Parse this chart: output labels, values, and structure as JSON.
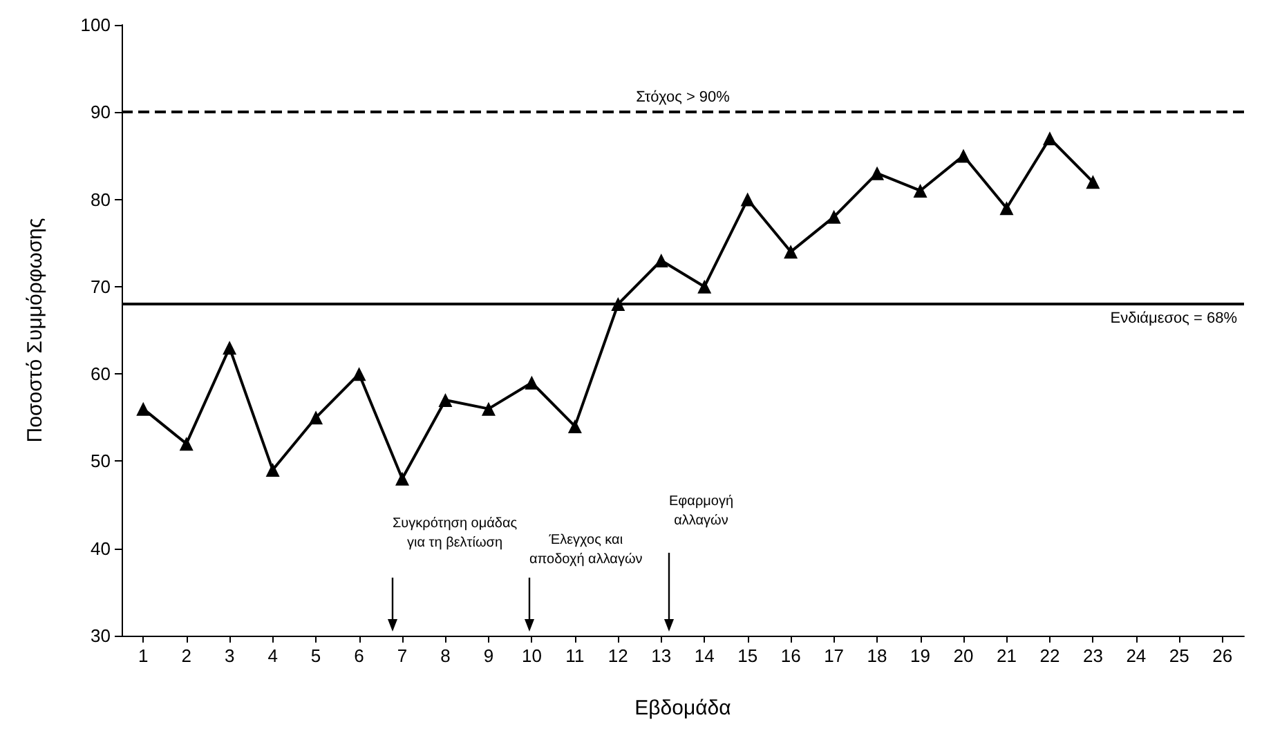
{
  "chart_data": {
    "type": "line",
    "xlabel": "Εβδομάδα",
    "ylabel": "Ποσοστό Συμμόρφωσης",
    "x": [
      1,
      2,
      3,
      4,
      5,
      6,
      7,
      8,
      9,
      10,
      11,
      12,
      13,
      14,
      15,
      16,
      17,
      18,
      19,
      20,
      21,
      22,
      23
    ],
    "series": [
      {
        "color": "#000000",
        "values": [
          56,
          52,
          63,
          49,
          55,
          60,
          48,
          57,
          56,
          59,
          54,
          68,
          73,
          70,
          80,
          74,
          78,
          83,
          81,
          85,
          79,
          87,
          82
        ]
      }
    ],
    "xlim": [
      0.5,
      26.5
    ],
    "xticks": [
      1,
      2,
      3,
      4,
      5,
      6,
      7,
      8,
      9,
      10,
      11,
      12,
      13,
      14,
      15,
      16,
      17,
      18,
      19,
      20,
      21,
      22,
      23,
      24,
      25,
      26
    ],
    "ylim": [
      30,
      100
    ],
    "yticks": [
      30,
      40,
      50,
      60,
      70,
      80,
      90,
      100
    ],
    "marker": "triangle",
    "line_style": "solid",
    "grid": false,
    "ref_lines": [
      {
        "axis": "y",
        "value": 90,
        "label": "Στόχος > 90%",
        "line_style": "dashed",
        "color": "#000000"
      },
      {
        "axis": "y",
        "value": 68,
        "label": "Ενδιάμεσος = 68%",
        "line_style": "solid",
        "color": "#000000"
      }
    ],
    "annotations": [
      "Συγκρότηση ομάδας\nγια τη βελτίωση",
      "Έλεγχος και\nαποδοχή αλλαγών",
      "Εφαρμογή\nαλλαγών"
    ]
  }
}
